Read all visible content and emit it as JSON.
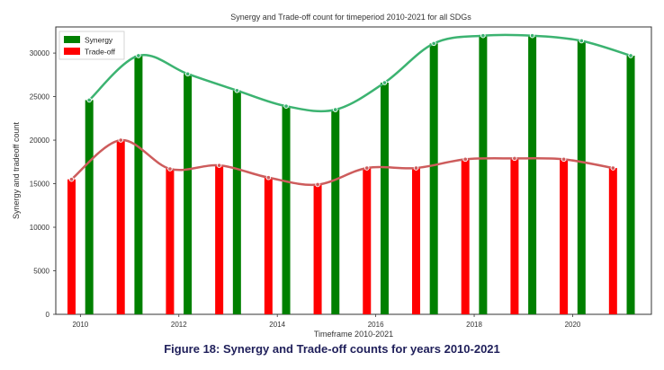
{
  "caption": "Figure 18: Synergy and Trade-off counts for years 2010-2021",
  "chart_data": {
    "type": "bar",
    "title": "Synergy and Trade-off count for timeperiod 2010-2021 for all SDGs",
    "xlabel": "Timeframe 2010-2021",
    "ylabel": "Synergy and tradeoff count",
    "categories": [
      2010,
      2011,
      2012,
      2013,
      2014,
      2015,
      2016,
      2017,
      2018,
      2019,
      2020,
      2021
    ],
    "xlim": [
      2009.5,
      2021.6
    ],
    "ylim": [
      0,
      33000
    ],
    "x_ticks": [
      2010,
      2012,
      2014,
      2016,
      2018,
      2020
    ],
    "y_ticks": [
      0,
      5000,
      10000,
      15000,
      20000,
      25000,
      30000
    ],
    "grid": false,
    "legend_position": "top-left",
    "series": [
      {
        "name": "Synergy",
        "color": "#008000",
        "line_color": "#3cb371",
        "values": [
          24600,
          29700,
          27600,
          25700,
          23900,
          23500,
          26600,
          31100,
          32000,
          32000,
          31400,
          29700
        ]
      },
      {
        "name": "Trade-off",
        "color": "#ff0000",
        "line_color": "#cd5c5c",
        "values": [
          15500,
          20000,
          16700,
          17100,
          15700,
          14900,
          16800,
          16800,
          17800,
          17900,
          17800,
          16800
        ]
      }
    ]
  }
}
